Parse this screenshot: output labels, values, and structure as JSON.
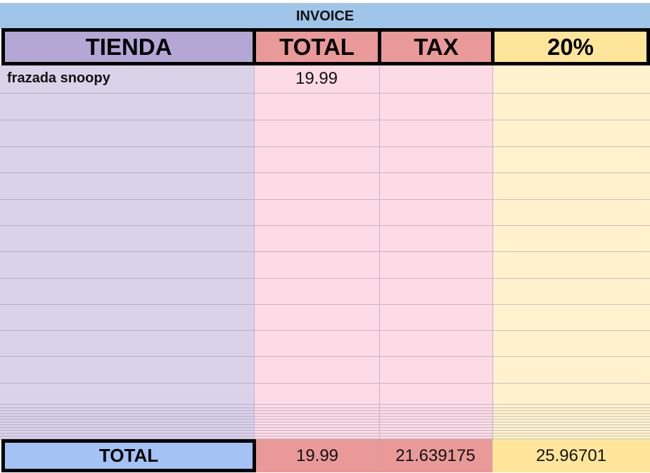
{
  "sheet": {
    "title": "INVOICE",
    "headers": [
      "TIENDA",
      "TOTAL",
      "TAX",
      "20%"
    ],
    "rows": [
      {
        "tienda": "frazada snoopy",
        "total": "19.99",
        "tax": "",
        "pct": ""
      }
    ],
    "totals": {
      "label": "TOTAL",
      "total": "19.99",
      "tax": "21.639175",
      "pct": "25.96701"
    },
    "colors": {
      "band": "#9fc5e8",
      "tienda_header": "#b4a7d6",
      "total_header": "#ea9999",
      "pct_header": "#ffe599",
      "tienda_fill": "#d9d2e9",
      "total_fill": "#fddbe6",
      "pct_fill": "#fff2cc",
      "totals_label": "#a4c2f4"
    }
  }
}
